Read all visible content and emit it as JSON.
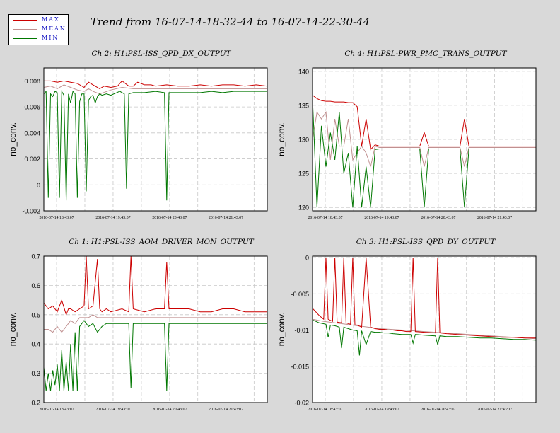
{
  "title": "Trend from 16-07-14-18-32-44 to 16-07-14-22-30-44",
  "legend": [
    {
      "label": "MAX",
      "color": "#cc0000"
    },
    {
      "label": "MEAN",
      "color": "#c09090"
    },
    {
      "label": "MIN",
      "color": "#007700"
    }
  ],
  "chart_data": [
    {
      "type": "line",
      "title": "Ch 2: H1:PSL-ISS_QPD_DX_OUTPUT",
      "ylabel": "no_conv.",
      "xlabel": "",
      "ylim": [
        -0.002,
        0.009
      ],
      "yticks": [
        "0.008",
        "0.006",
        "0.004",
        "0.002",
        "0",
        "-0.002"
      ],
      "ytick_values": [
        0.008,
        0.006,
        0.004,
        0.002,
        0,
        -0.002
      ],
      "xticks": [
        "2016-07-14 18:43:07",
        "2016-07-14 19:43:07",
        "2016-07-14 20:43:07",
        "2016-07-14 21:43:07"
      ],
      "grid": true,
      "series": [
        {
          "name": "MAX",
          "color": "#cc0000",
          "x": [
            0,
            3,
            6,
            9,
            12,
            15,
            18,
            20,
            22,
            25,
            27,
            30,
            33,
            35,
            38,
            40,
            42,
            45,
            48,
            50,
            55,
            60,
            65,
            70,
            75,
            80,
            85,
            90,
            95,
            100
          ],
          "y": [
            0.008,
            0.008,
            0.0079,
            0.008,
            0.0079,
            0.0078,
            0.0075,
            0.0079,
            0.0077,
            0.0074,
            0.0076,
            0.0075,
            0.0076,
            0.008,
            0.0076,
            0.0076,
            0.0079,
            0.0077,
            0.0077,
            0.0076,
            0.0077,
            0.0076,
            0.0076,
            0.0077,
            0.0076,
            0.0077,
            0.0077,
            0.0076,
            0.0077,
            0.0076
          ]
        },
        {
          "name": "MEAN",
          "color": "#c09090",
          "x": [
            0,
            3,
            6,
            9,
            12,
            15,
            18,
            20,
            22,
            25,
            30,
            35,
            40,
            45,
            50,
            55,
            60,
            65,
            70,
            75,
            80,
            85,
            90,
            95,
            100
          ],
          "y": [
            0.0075,
            0.0076,
            0.0074,
            0.0077,
            0.0075,
            0.0073,
            0.0072,
            0.0074,
            0.0072,
            0.007,
            0.0073,
            0.0075,
            0.0074,
            0.0074,
            0.0074,
            0.0074,
            0.0074,
            0.0074,
            0.0074,
            0.0074,
            0.0074,
            0.0074,
            0.0074,
            0.0074,
            0.0074
          ]
        },
        {
          "name": "MIN",
          "color": "#007700",
          "x": [
            0,
            1,
            2,
            3,
            4,
            5,
            6,
            7,
            8,
            9,
            10,
            11,
            12,
            13,
            14,
            15,
            16,
            17,
            18,
            19,
            20,
            21,
            22,
            23,
            24,
            25,
            26,
            28,
            30,
            34,
            36,
            37,
            38,
            40,
            45,
            50,
            54,
            55,
            56,
            58,
            60,
            65,
            70,
            75,
            80,
            85,
            90,
            95,
            100
          ],
          "y": [
            0.007,
            0.0072,
            -0.001,
            0.007,
            0.0068,
            0.0072,
            0.0071,
            -0.001,
            0.0072,
            0.0069,
            -0.0012,
            0.007,
            0.0063,
            0.0072,
            0.007,
            -0.001,
            0.0064,
            0.007,
            0.007,
            -0.0005,
            0.0065,
            0.0068,
            0.0069,
            0.0063,
            0.0068,
            0.007,
            0.0069,
            0.007,
            0.0069,
            0.0072,
            0.007,
            -0.0003,
            0.007,
            0.0071,
            0.0071,
            0.0072,
            0.0071,
            -0.0012,
            0.0071,
            0.0071,
            0.0071,
            0.0071,
            0.0071,
            0.0072,
            0.0071,
            0.0072,
            0.0072,
            0.0072,
            0.0072
          ]
        }
      ]
    },
    {
      "type": "line",
      "title": "Ch 4: H1:PSL-PWR_PMC_TRANS_OUTPUT",
      "ylabel": "no_conv.",
      "xlabel": "",
      "ylim": [
        119.5,
        140.5
      ],
      "yticks": [
        "140",
        "135",
        "130",
        "125",
        "120"
      ],
      "ytick_values": [
        140,
        135,
        130,
        125,
        120
      ],
      "xticks": [
        "2016-07-14 18:43:07",
        "2016-07-14 19:43:07",
        "2016-07-14 20:43:07",
        "2016-07-14 21:43:07"
      ],
      "grid": true,
      "series": [
        {
          "name": "MAX",
          "color": "#cc0000",
          "x": [
            0,
            2,
            4,
            6,
            8,
            10,
            12,
            14,
            16,
            18,
            20,
            22,
            24,
            26,
            28,
            30,
            32,
            34,
            36,
            38,
            40,
            42,
            44,
            46,
            48,
            50,
            52,
            54,
            56,
            58,
            60,
            62,
            64,
            66,
            68,
            70,
            74,
            80,
            85,
            90,
            95,
            100
          ],
          "y": [
            136.5,
            136.0,
            135.7,
            135.6,
            135.6,
            135.5,
            135.5,
            135.5,
            135.4,
            135.4,
            134.8,
            129.0,
            133.0,
            128.5,
            129.2,
            129.0,
            129.0,
            129.0,
            129.0,
            129.0,
            129.0,
            129.0,
            129.0,
            129.0,
            129.0,
            131.0,
            129.0,
            129.0,
            129.0,
            129.0,
            129.0,
            129.0,
            129.0,
            129.0,
            133.0,
            129.0,
            129.0,
            129.0,
            129.0,
            129.0,
            129.0,
            129.0
          ]
        },
        {
          "name": "MEAN",
          "color": "#c09090",
          "x": [
            0,
            2,
            4,
            6,
            8,
            10,
            12,
            14,
            16,
            18,
            20,
            22,
            24,
            26,
            28,
            30,
            32,
            34,
            36,
            38,
            40,
            42,
            44,
            46,
            48,
            50,
            52,
            54,
            56,
            58,
            60,
            62,
            64,
            66,
            68,
            70,
            74,
            80,
            85,
            90,
            95,
            100
          ],
          "y": [
            130.0,
            134.0,
            133.0,
            134.0,
            127.0,
            133.0,
            129.0,
            129.0,
            133.0,
            127.0,
            128.0,
            129.0,
            128.0,
            126.0,
            129.0,
            128.8,
            128.8,
            128.8,
            128.8,
            128.8,
            128.8,
            128.8,
            128.8,
            128.8,
            128.8,
            126.0,
            128.8,
            128.8,
            128.8,
            128.8,
            128.8,
            128.8,
            128.8,
            128.8,
            126.0,
            128.8,
            128.8,
            128.8,
            128.8,
            128.8,
            128.8,
            128.8
          ]
        },
        {
          "name": "MIN",
          "color": "#007700",
          "x": [
            0,
            2,
            4,
            6,
            8,
            10,
            12,
            14,
            16,
            18,
            20,
            22,
            24,
            26,
            28,
            30,
            32,
            34,
            36,
            38,
            40,
            42,
            44,
            46,
            48,
            50,
            52,
            54,
            56,
            58,
            60,
            62,
            64,
            66,
            68,
            70,
            74,
            80,
            85,
            90,
            95,
            100
          ],
          "y": [
            136.0,
            120.0,
            132.0,
            126.0,
            131.0,
            127.0,
            134.0,
            125.0,
            128.0,
            120.0,
            129.0,
            120.0,
            126.0,
            120.0,
            128.5,
            128.6,
            128.6,
            128.6,
            128.6,
            128.6,
            128.6,
            128.6,
            128.6,
            128.6,
            128.6,
            120.0,
            128.6,
            128.6,
            128.6,
            128.6,
            128.6,
            128.6,
            128.6,
            128.6,
            120.0,
            128.6,
            128.6,
            128.6,
            128.6,
            128.6,
            128.6,
            128.6
          ]
        }
      ]
    },
    {
      "type": "line",
      "title": "Ch 1: H1:PSL-ISS_AOM_DRIVER_MON_OUTPUT",
      "ylabel": "no_conv.",
      "xlabel": "",
      "ylim": [
        0.2,
        0.7
      ],
      "yticks": [
        "0.7",
        "0.6",
        "0.5",
        "0.4",
        "0.3",
        "0.2"
      ],
      "ytick_values": [
        0.7,
        0.6,
        0.5,
        0.4,
        0.3,
        0.2
      ],
      "xticks": [
        "2016-07-14 18:43:07",
        "2016-07-14 19:43:07",
        "2016-07-14 20:43:07",
        "2016-07-14 21:43:07"
      ],
      "grid": true,
      "series": [
        {
          "name": "MAX",
          "color": "#cc0000",
          "x": [
            0,
            2,
            4,
            6,
            8,
            10,
            11,
            12,
            14,
            16,
            18,
            19,
            20,
            22,
            24,
            25,
            26,
            28,
            30,
            35,
            38,
            39,
            40,
            45,
            50,
            54,
            55,
            56,
            60,
            65,
            70,
            75,
            80,
            85,
            90,
            95,
            100
          ],
          "y": [
            0.54,
            0.52,
            0.53,
            0.51,
            0.55,
            0.5,
            0.52,
            0.52,
            0.51,
            0.52,
            0.53,
            0.7,
            0.52,
            0.53,
            0.69,
            0.52,
            0.51,
            0.52,
            0.51,
            0.52,
            0.51,
            0.7,
            0.52,
            0.51,
            0.52,
            0.52,
            0.68,
            0.52,
            0.52,
            0.52,
            0.51,
            0.51,
            0.52,
            0.52,
            0.51,
            0.51,
            0.51
          ]
        },
        {
          "name": "MEAN",
          "color": "#c09090",
          "x": [
            0,
            2,
            4,
            6,
            8,
            10,
            12,
            14,
            16,
            18,
            20,
            22,
            24,
            26,
            28,
            30,
            35,
            40,
            45,
            50,
            55,
            60,
            65,
            70,
            75,
            80,
            85,
            90,
            95,
            100
          ],
          "y": [
            0.45,
            0.45,
            0.44,
            0.46,
            0.44,
            0.46,
            0.48,
            0.47,
            0.49,
            0.49,
            0.49,
            0.5,
            0.49,
            0.49,
            0.49,
            0.49,
            0.49,
            0.49,
            0.49,
            0.49,
            0.49,
            0.49,
            0.49,
            0.49,
            0.49,
            0.49,
            0.49,
            0.49,
            0.49,
            0.49
          ]
        },
        {
          "name": "MIN",
          "color": "#007700",
          "x": [
            0,
            1,
            2,
            3,
            4,
            5,
            6,
            7,
            8,
            9,
            10,
            11,
            12,
            13,
            14,
            15,
            16,
            18,
            20,
            22,
            24,
            26,
            28,
            30,
            35,
            38,
            39,
            40,
            45,
            50,
            54,
            55,
            56,
            60,
            65,
            70,
            75,
            80,
            85,
            90,
            95,
            100
          ],
          "y": [
            0.32,
            0.24,
            0.3,
            0.24,
            0.31,
            0.26,
            0.33,
            0.24,
            0.38,
            0.24,
            0.34,
            0.24,
            0.4,
            0.24,
            0.44,
            0.24,
            0.46,
            0.48,
            0.46,
            0.47,
            0.44,
            0.46,
            0.47,
            0.47,
            0.47,
            0.47,
            0.25,
            0.47,
            0.47,
            0.47,
            0.47,
            0.24,
            0.47,
            0.47,
            0.47,
            0.47,
            0.47,
            0.47,
            0.47,
            0.47,
            0.47,
            0.47
          ]
        }
      ]
    },
    {
      "type": "line",
      "title": "Ch 3: H1:PSL-ISS_QPD_DY_OUTPUT",
      "ylabel": "no_conv.",
      "xlabel": "",
      "ylim": [
        -0.02,
        0.0002
      ],
      "yticks": [
        "0",
        "-0.005",
        "-0.01",
        "-0.015",
        "-0.02"
      ],
      "ytick_values": [
        0,
        -0.005,
        -0.01,
        -0.015,
        -0.02
      ],
      "xticks": [
        "2016-07-14 18:43:07",
        "2016-07-14 19:43:07",
        "2016-07-14 20:43:07",
        "2016-07-14 21:43:07"
      ],
      "grid": true,
      "series": [
        {
          "name": "MAX",
          "color": "#cc0000",
          "x": [
            0,
            3,
            5,
            6,
            7,
            9,
            10,
            11,
            13,
            14,
            15,
            17,
            18,
            19,
            20,
            22,
            24,
            26,
            28,
            30,
            32,
            34,
            36,
            38,
            40,
            42,
            44,
            45,
            46,
            50,
            55,
            56,
            57,
            60,
            65,
            70,
            75,
            80,
            85,
            90,
            95,
            100
          ],
          "y": [
            -0.007,
            -0.008,
            -0.0085,
            0.0,
            -0.0085,
            -0.0088,
            0.0,
            -0.0089,
            -0.009,
            0.0,
            -0.009,
            -0.0092,
            0.0,
            -0.0093,
            -0.0093,
            -0.0096,
            0.0,
            -0.0096,
            -0.0098,
            -0.0099,
            -0.0099,
            -0.01,
            -0.01,
            -0.0101,
            -0.0101,
            -0.0102,
            -0.0102,
            0.0,
            -0.0102,
            -0.0103,
            -0.0104,
            0.0,
            -0.0104,
            -0.0105,
            -0.0106,
            -0.0107,
            -0.0108,
            -0.0109,
            -0.011,
            -0.011,
            -0.0111,
            -0.0111
          ]
        },
        {
          "name": "MEAN",
          "color": "#c09090",
          "x": [
            0,
            5,
            10,
            15,
            20,
            25,
            30,
            35,
            40,
            45,
            50,
            55,
            60,
            65,
            70,
            75,
            80,
            85,
            90,
            95,
            100
          ],
          "y": [
            -0.0085,
            -0.0088,
            -0.009,
            -0.0092,
            -0.0094,
            -0.0096,
            -0.0098,
            -0.0099,
            -0.01,
            -0.0101,
            -0.0102,
            -0.0103,
            -0.0104,
            -0.0105,
            -0.0106,
            -0.0107,
            -0.0108,
            -0.0109,
            -0.011,
            -0.0111,
            -0.0112
          ]
        },
        {
          "name": "MIN",
          "color": "#007700",
          "x": [
            0,
            3,
            6,
            7,
            8,
            10,
            12,
            13,
            14,
            16,
            18,
            20,
            21,
            22,
            24,
            26,
            28,
            30,
            32,
            34,
            36,
            40,
            44,
            45,
            46,
            50,
            55,
            56,
            57,
            60,
            65,
            70,
            75,
            80,
            85,
            90,
            95,
            100
          ],
          "y": [
            -0.0086,
            -0.009,
            -0.0092,
            -0.011,
            -0.0093,
            -0.0094,
            -0.0096,
            -0.0125,
            -0.0096,
            -0.0098,
            -0.01,
            -0.0101,
            -0.0135,
            -0.0101,
            -0.012,
            -0.0102,
            -0.0103,
            -0.0103,
            -0.0104,
            -0.0104,
            -0.0105,
            -0.0106,
            -0.0106,
            -0.0118,
            -0.0106,
            -0.0107,
            -0.0108,
            -0.012,
            -0.0108,
            -0.0109,
            -0.0109,
            -0.011,
            -0.0111,
            -0.0111,
            -0.0112,
            -0.0113,
            -0.0113,
            -0.0114
          ]
        }
      ]
    }
  ]
}
